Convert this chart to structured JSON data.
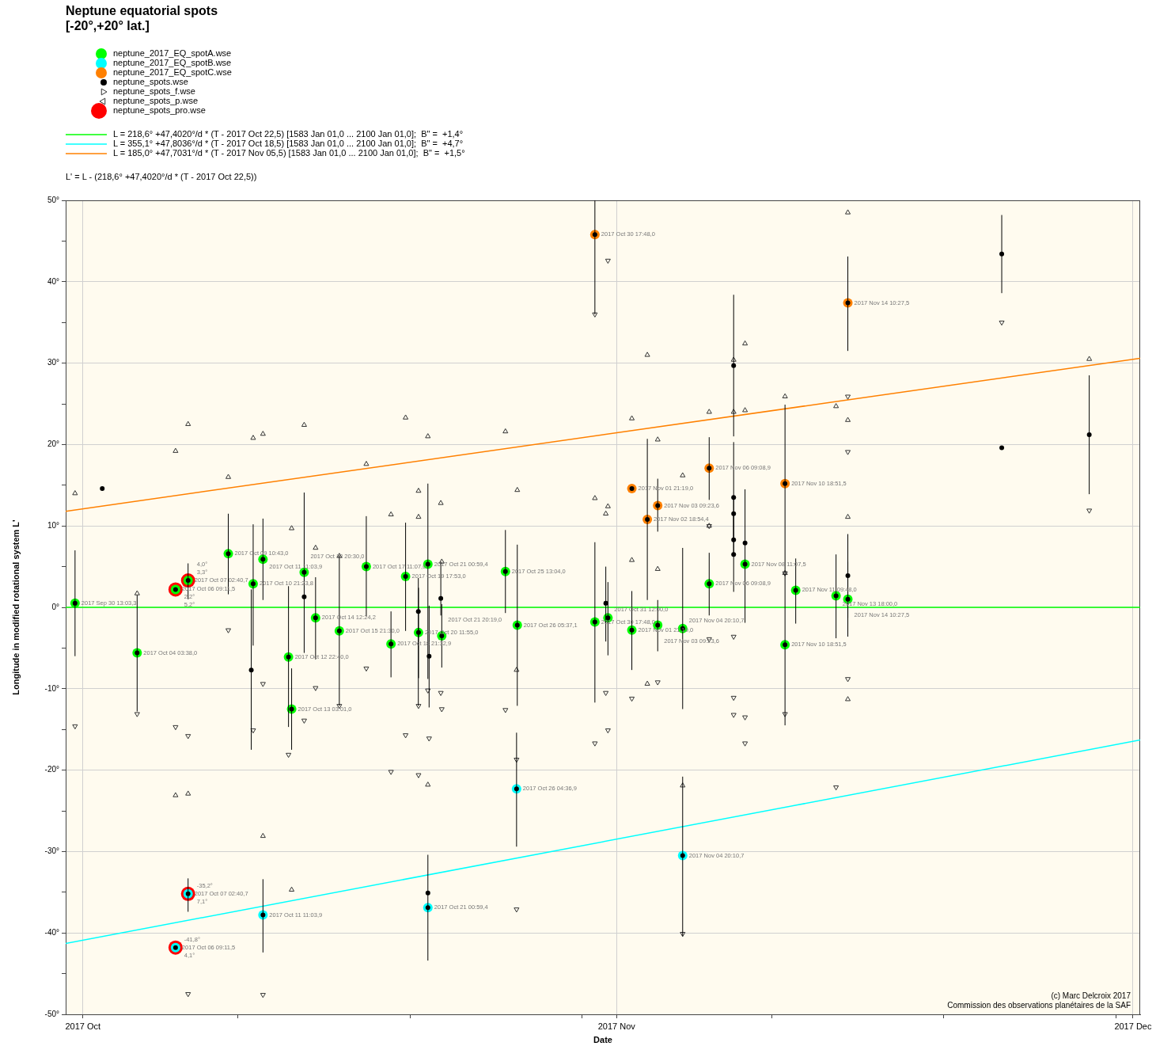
{
  "chart_data": {
    "type": "scatter",
    "title": "Neptune equatorial spots",
    "subtitle": "[-20°,+20° lat.]",
    "xlabel": "Date",
    "ylabel": "Longitude in modified rotational system L'",
    "annotations": [
      "L' = L - (218,6° +47,4020°/d * (T - 2017 Oct 22,5))",
      "(c) Marc Delcroix 2017",
      "Commission des observations planétaires de la SAF",
      {
        "text": "5,2°",
        "x": "2017-10-06T09:11",
        "y": 2.2
      },
      {
        "text": "4,1°",
        "x": "2017-10-06T09:11",
        "y": -41.8
      },
      {
        "text": "4,0°",
        "x": "2017-10-07T02:40",
        "y": 3.3
      },
      {
        "text": "7,1°",
        "x": "2017-10-07T02:40",
        "y": -35.2
      }
    ],
    "xlim": [
      "2017-09-30",
      "2017-12-01T10:00"
    ],
    "xticks": [
      {
        "value": "2017-10-01",
        "label": "2017 Oct"
      },
      {
        "value": "2017-10-10",
        "label": null
      },
      {
        "value": "2017-10-20",
        "label": null
      },
      {
        "value": "2017-10-30",
        "label": null
      },
      {
        "value": "2017-11-01",
        "label": "2017 Nov"
      },
      {
        "value": "2017-11-10",
        "label": null
      },
      {
        "value": "2017-11-20",
        "label": null
      },
      {
        "value": "2017-11-30",
        "label": null
      },
      {
        "value": "2017-12-01",
        "label": "2017 Dec"
      }
    ],
    "ylim": [
      -50,
      50
    ],
    "yticks": [
      {
        "value": -50,
        "label": "-50°"
      },
      {
        "value": -45,
        "label": null
      },
      {
        "value": -40,
        "label": "-40°"
      },
      {
        "value": -35,
        "label": null
      },
      {
        "value": -30,
        "label": "-30°"
      },
      {
        "value": -25,
        "label": null
      },
      {
        "value": -20,
        "label": "-20°"
      },
      {
        "value": -15,
        "label": null
      },
      {
        "value": -10,
        "label": "-10°"
      },
      {
        "value": -5,
        "label": null
      },
      {
        "value": 0,
        "label": "0°"
      },
      {
        "value": 5,
        "label": null
      },
      {
        "value": 10,
        "label": "10°"
      },
      {
        "value": 15,
        "label": null
      },
      {
        "value": 20,
        "label": "20°"
      },
      {
        "value": 25,
        "label": null
      },
      {
        "value": 30,
        "label": "30°"
      },
      {
        "value": 35,
        "label": null
      },
      {
        "value": 40,
        "label": "40°"
      },
      {
        "value": 45,
        "label": null
      },
      {
        "value": 50,
        "label": "50°"
      }
    ],
    "grid": true,
    "legend": "top left",
    "series": [
      {
        "name": "neptune_2017_EQ_spotA.wse",
        "color": "#00ff00",
        "marker": "circle",
        "x": [
          "2017-09-30T13:03",
          "2017-10-04T03:38",
          "2017-10-06T09:11",
          "2017-10-07T02:40",
          "2017-10-09T10:43",
          "2017-10-10T21:23",
          "2017-10-11T11:03",
          "2017-10-12T22:40",
          "2017-10-13T03:01",
          "2017-10-13T20:30",
          "2017-10-14T12:24",
          "2017-10-15T21:30",
          "2017-10-17T11:07",
          "2017-10-18T21:32",
          "2017-10-19T17:53",
          "2017-10-20T11:55",
          "2017-10-21T00:59",
          "2017-10-21T20:19",
          "2017-10-25T13:04",
          "2017-10-26T05:37",
          "2017-10-30T17:48",
          "2017-10-31T12:00",
          "2017-11-01T21:19",
          "2017-11-03T09:23",
          "2017-11-04T20:10",
          "2017-11-06T09:08",
          "2017-11-08T11:07",
          "2017-11-10T18:51",
          "2017-11-11T09:48",
          "2017-11-13T18:00",
          "2017-11-14T10:27"
        ],
        "values": [
          0.5,
          -5.6,
          2.2,
          3.3,
          6.6,
          2.9,
          5.9,
          -6.1,
          -12.5,
          4.3,
          -1.3,
          -2.9,
          5.0,
          -4.5,
          3.8,
          -3.1,
          5.3,
          -3.5,
          4.4,
          -2.2,
          -1.8,
          -1.3,
          -2.8,
          -2.2,
          -2.6,
          2.9,
          5.3,
          -4.6,
          2.1,
          1.4,
          1.0
        ],
        "value_labels": [
          "2017 Sep 30 13:03,3",
          "2017 Oct 04 03:38,0",
          "2017 Oct 06 09:11,5",
          "2017 Oct 07 02:40,7",
          "2017 Oct 09 10:43,0",
          "2017 Oct 10 21:23,8",
          "2017 Oct 11 11:03,9",
          "2017 Oct 12 22:40,0",
          "2017 Oct 13 03:01,0",
          "2017 Oct 13 20:30,0",
          "2017 Oct 14 12:24,2",
          "2017 Oct 15 21:30,0",
          "2017 Oct 17 11:07,0",
          "2017 Oct 18 21:32,9",
          "2017 Oct 19 17:53,0",
          "2017 Oct 20 11:55,0",
          "2017 Oct 21 00:59,4",
          "2017 Oct 21 20:19,0",
          "2017 Oct 25 13:04,0",
          "2017 Oct 26 05:37,1",
          "2017 Oct 30 17:48,0",
          "2017 Oct 31 12:00,0",
          "2017 Nov 01 21:19,0",
          "2017 Nov 03 09:23,6",
          "2017 Nov 04 20:10,7",
          "2017 Nov 06 09:08,9",
          "2017 Nov 08 11:07,5",
          "2017 Nov 10 18:51,5",
          "2017 Nov 11 09:48,0",
          "2017 Nov 13 18:00,0",
          "2017 Nov 14 10:27,5"
        ]
      },
      {
        "name": "neptune_2017_EQ_spotB.wse",
        "color": "#00ffff",
        "marker": "circle",
        "x": [
          "2017-10-06T09:11",
          "2017-10-07T02:40",
          "2017-10-11T11:03",
          "2017-10-21T00:59",
          "2017-10-26T04:36",
          "2017-11-04T20:10"
        ],
        "values": [
          -41.8,
          -35.2,
          -37.8,
          -36.9,
          -22.3,
          -30.5
        ],
        "value_labels": [
          "2017 Oct 06 09:11,5",
          "2017 Oct 07 02:40,7",
          "2017 Oct 11 11:03,9",
          "2017 Oct 21 00:59,4",
          "2017 Oct 26 04:36,9",
          "2017 Nov 04 20:10,7"
        ]
      },
      {
        "name": "neptune_2017_EQ_spotC.wse",
        "color": "#ff8000",
        "marker": "circle",
        "x": [
          "2017-10-30T17:48",
          "2017-11-01T21:19",
          "2017-11-02T18:54",
          "2017-11-03T09:23",
          "2017-11-06T09:08",
          "2017-11-10T18:51",
          "2017-11-14T10:27"
        ],
        "values": [
          45.8,
          14.6,
          10.8,
          12.5,
          17.1,
          15.2,
          37.4
        ],
        "value_labels": [
          "2017 Oct 30 17:48,0",
          "2017 Nov 01 21:19,0",
          "2017 Nov 02 18:54,4",
          "2017 Nov 03 09:23,6",
          "2017 Nov 06 09:08,9",
          "2017 Nov 10 18:51,5",
          "2017 Nov 14 10:27,5"
        ]
      },
      {
        "name": "neptune_spots.wse",
        "color": "#000000",
        "marker": "circle",
        "x": [
          "2017-09-30T13:03",
          "2017-10-02T03:00",
          "2017-10-04T03:38",
          "2017-10-06T09:11",
          "2017-10-06T09:11",
          "2017-10-07T02:40",
          "2017-10-07T02:40",
          "2017-10-09T10:43",
          "2017-10-10T18:45",
          "2017-10-10T21:23",
          "2017-10-11T11:03",
          "2017-10-11T11:03",
          "2017-10-12T22:40",
          "2017-10-13T03:01",
          "2017-10-13T20:30",
          "2017-10-13T20:30",
          "2017-10-14T12:24",
          "2017-10-15T21:30",
          "2017-10-17T11:07",
          "2017-10-18T21:32",
          "2017-10-19T17:53",
          "2017-10-20T11:40",
          "2017-10-20T11:55",
          "2017-10-21T00:59",
          "2017-10-21T00:59",
          "2017-10-21T00:59",
          "2017-10-21T02:40",
          "2017-10-21T19:00",
          "2017-10-21T20:19",
          "2017-10-25T13:04",
          "2017-10-26T04:36",
          "2017-10-26T05:37",
          "2017-10-30T17:48",
          "2017-10-30T17:48",
          "2017-10-31T09:00",
          "2017-10-31T12:00",
          "2017-11-01T21:19",
          "2017-11-01T21:19",
          "2017-11-02T18:54",
          "2017-11-03T09:23",
          "2017-11-03T09:23",
          "2017-11-04T20:10",
          "2017-11-04T20:10",
          "2017-11-06T09:08",
          "2017-11-06T09:08",
          "2017-11-07T19:15",
          "2017-11-07T19:15",
          "2017-11-07T19:15",
          "2017-11-07T19:15",
          "2017-11-07T19:15",
          "2017-11-08T11:07",
          "2017-11-08T11:07",
          "2017-11-10T18:51",
          "2017-11-10T18:51",
          "2017-11-11T09:48",
          "2017-11-13T18:00",
          "2017-11-14T10:27",
          "2017-11-14T10:27",
          "2017-11-14T10:27",
          "2017-11-23T09:00",
          "2017-11-23T09:00",
          "2017-11-28T11:00"
        ],
        "values": [
          0.5,
          14.6,
          -5.6,
          2.2,
          -41.8,
          3.3,
          -35.2,
          6.6,
          -7.7,
          2.9,
          5.9,
          -37.8,
          -6.1,
          -12.5,
          4.3,
          1.3,
          -1.3,
          -2.9,
          5.0,
          -4.5,
          3.8,
          -0.5,
          -3.1,
          5.3,
          -36.9,
          -35.1,
          -6.0,
          1.1,
          -3.5,
          4.4,
          -22.3,
          -2.2,
          45.8,
          -1.8,
          0.5,
          -1.3,
          14.6,
          -2.8,
          10.8,
          12.5,
          -2.2,
          -2.6,
          -30.5,
          17.1,
          2.9,
          29.7,
          13.5,
          11.5,
          8.3,
          6.5,
          7.9,
          5.3,
          15.2,
          -4.6,
          2.1,
          1.4,
          37.4,
          3.9,
          1.0,
          43.4,
          19.6,
          21.2
        ],
        "errors": [
          [
            -6.0,
            7.0
          ],
          null,
          [
            -12.8,
            1.5
          ],
          null,
          null,
          [
            1.0,
            5.4
          ],
          [
            -37.4,
            -33.3
          ],
          [
            1.6,
            11.5
          ],
          [
            -17.5,
            2.2
          ],
          [
            -4.7,
            10.2
          ],
          [
            0.9,
            10.9
          ],
          [
            -42.4,
            -33.4
          ],
          [
            -14.7,
            2.6
          ],
          [
            -17.5,
            -7.5
          ],
          [
            -5.6,
            14.1
          ],
          null,
          [
            -6.4,
            3.7
          ],
          [
            -12.1,
            6.4
          ],
          [
            -1.1,
            11.2
          ],
          [
            -8.6,
            -0.5
          ],
          [
            -2.9,
            10.4
          ],
          [
            -12.1,
            3.6
          ],
          [
            -8.7,
            2.4
          ],
          [
            -8.8,
            15.2
          ],
          [
            -43.4,
            -30.4
          ],
          null,
          [
            -12.3,
            0.2
          ],
          [
            -1.0,
            5.6
          ],
          [
            -7.4,
            0.4
          ],
          [
            -0.7,
            9.5
          ],
          [
            -29.4,
            -15.4
          ],
          [
            -12.1,
            7.7
          ],
          [
            36.0,
            50
          ],
          [
            -11.7,
            8.0
          ],
          [
            -4.2,
            5.0
          ],
          [
            -5.9,
            3.1
          ],
          null,
          [
            -7.7,
            2.0
          ],
          [
            0.9,
            20.7
          ],
          [
            9.3,
            15.8
          ],
          [
            -5.4,
            0.9
          ],
          [
            -12.5,
            7.3
          ],
          [
            -40.4,
            -20.8
          ],
          [
            13.2,
            20.9
          ],
          [
            -1.0,
            6.7
          ],
          [
            21.0,
            38.4
          ],
          [
            1.9,
            20.3
          ],
          [
            8.3,
            13.5
          ],
          [
            6.5,
            11.5
          ],
          null,
          null,
          [
            -1.9,
            14.5
          ],
          [
            -14.5,
            24.9
          ],
          null,
          [
            -2.0,
            6.0
          ],
          [
            -3.8,
            6.5
          ],
          [
            31.5,
            43.1
          ],
          [
            -1.3,
            5.6
          ],
          [
            -3.6,
            9.0
          ],
          [
            38.6,
            48.2
          ],
          null,
          [
            13.9,
            28.5
          ]
        ]
      },
      {
        "name": "neptune_spots_f.wse",
        "color": "#333333",
        "marker": "triangle",
        "x": [
          "2017-09-30T13:03",
          "2017-10-04T03:38",
          "2017-10-06T09:11",
          "2017-10-06T09:11",
          "2017-10-07T02:40",
          "2017-10-07T02:40",
          "2017-10-09T10:43",
          "2017-10-10T21:23",
          "2017-10-11T11:03",
          "2017-10-11T11:03",
          "2017-10-13T03:01",
          "2017-10-13T03:01",
          "2017-10-13T20:30",
          "2017-10-14T12:24",
          "2017-10-15T21:30",
          "2017-10-17T11:07",
          "2017-10-18T21:32",
          "2017-10-19T17:53",
          "2017-10-20T11:55",
          "2017-10-20T11:55",
          "2017-10-21T00:59",
          "2017-10-21T00:59",
          "2017-10-21T19:00",
          "2017-10-21T20:19",
          "2017-10-25T13:04",
          "2017-10-26T04:36",
          "2017-10-26T05:37",
          "2017-10-30T17:48",
          "2017-10-31T09:00",
          "2017-10-31T12:00",
          "2017-11-01T21:19",
          "2017-11-01T21:19",
          "2017-11-02T18:54",
          "2017-11-02T18:54",
          "2017-11-03T09:23",
          "2017-11-03T09:23",
          "2017-11-04T20:10",
          "2017-11-04T20:10",
          "2017-11-06T09:08",
          "2017-11-06T09:08",
          "2017-11-07T19:15",
          "2017-11-07T19:15",
          "2017-11-08T11:07",
          "2017-11-08T11:07",
          "2017-11-10T18:51",
          "2017-11-10T18:51",
          "2017-11-13T18:00",
          "2017-11-14T10:27",
          "2017-11-14T10:27",
          "2017-11-14T10:27",
          "2017-11-14T10:27",
          "2017-11-28T11:00"
        ],
        "values": [
          14.0,
          1.7,
          19.2,
          -23.1,
          22.5,
          -22.9,
          16.0,
          20.8,
          21.3,
          -28.1,
          9.7,
          -34.7,
          22.4,
          7.3,
          6.3,
          17.6,
          11.4,
          23.3,
          14.3,
          11.1,
          21.0,
          -21.8,
          12.8,
          5.6,
          21.6,
          -7.7,
          14.4,
          13.4,
          11.5,
          12.4,
          23.2,
          5.8,
          31.0,
          -9.4,
          20.6,
          4.7,
          16.2,
          -21.9,
          24.0,
          10.0,
          30.4,
          24.0,
          32.4,
          24.2,
          25.9,
          4.2,
          24.7,
          48.5,
          23.0,
          11.1,
          -11.3,
          30.5
        ]
      },
      {
        "name": "neptune_spots_p.wse",
        "color": "#333333",
        "marker": "triangle",
        "x": [
          "2017-09-30T13:03",
          "2017-10-04T03:38",
          "2017-10-06T09:11",
          "2017-10-07T02:40",
          "2017-10-07T02:40",
          "2017-10-09T10:43",
          "2017-10-10T21:23",
          "2017-10-11T11:03",
          "2017-10-11T11:03",
          "2017-10-12T22:40",
          "2017-10-13T20:30",
          "2017-10-14T12:24",
          "2017-10-15T21:30",
          "2017-10-17T11:07",
          "2017-10-18T21:32",
          "2017-10-19T17:53",
          "2017-10-20T11:55",
          "2017-10-20T11:55",
          "2017-10-21T00:59",
          "2017-10-21T02:40",
          "2017-10-21T19:00",
          "2017-10-21T20:19",
          "2017-10-25T13:04",
          "2017-10-26T04:36",
          "2017-10-26T04:36",
          "2017-10-30T17:48",
          "2017-10-30T17:48",
          "2017-10-31T09:00",
          "2017-10-31T12:00",
          "2017-10-31T12:00",
          "2017-11-01T21:19",
          "2017-11-03T09:23",
          "2017-11-04T20:10",
          "2017-11-06T09:08",
          "2017-11-06T09:08",
          "2017-11-07T19:15",
          "2017-11-07T19:15",
          "2017-11-07T19:15",
          "2017-11-08T11:07",
          "2017-11-08T11:07",
          "2017-11-10T18:51",
          "2017-11-10T18:51",
          "2017-11-13T18:00",
          "2017-11-14T10:27",
          "2017-11-14T10:27",
          "2017-11-14T10:27",
          "2017-11-23T09:00",
          "2017-11-28T11:00"
        ],
        "values": [
          -14.6,
          -13.1,
          -14.7,
          -15.8,
          -47.5,
          -2.8,
          -15.1,
          -9.4,
          -47.6,
          -18.1,
          -13.9,
          -9.9,
          -12.1,
          -7.5,
          -20.2,
          -15.7,
          -12.1,
          -20.6,
          -10.2,
          -16.1,
          -10.5,
          -12.5,
          -12.6,
          -18.7,
          -37.1,
          36.0,
          -16.7,
          -10.5,
          42.6,
          -15.1,
          -11.2,
          -9.2,
          -40.1,
          10.0,
          -3.9,
          -3.6,
          -11.1,
          -13.2,
          -13.5,
          -16.7,
          4.2,
          -13.1,
          -22.1,
          25.9,
          19.1,
          -8.8,
          35.0,
          11.9
        ]
      },
      {
        "name": "neptune_spots_pro.wse",
        "color": "#ff0000",
        "marker": "circle",
        "x": [
          "2017-10-06T09:11",
          "2017-10-06T09:11",
          "2017-10-07T02:40",
          "2017-10-07T02:40"
        ],
        "values": [
          2.2,
          -41.8,
          3.3,
          -35.2
        ],
        "value_labels": [
          "2,2°",
          "-41,8°",
          "3,3°",
          "-35,2°"
        ]
      },
      {
        "type": "line",
        "name": "L = 218,6° +47,4020°/d * (T - 2017 Oct 22,5) [1583 Jan 01,0 ... 2100 Jan 01,0];  B\" =  +1,4°",
        "color": "#00ff00",
        "x": [
          "2017-09-30",
          "2017-12-01T10:00"
        ],
        "values": [
          0,
          0
        ]
      },
      {
        "type": "line",
        "name": "L = 355,1° +47,8036°/d * (T - 2017 Oct 18,5) [1583 Jan 01,0 ... 2100 Jan 01,0];  B\" =  +4,7°",
        "color": "#00ffff",
        "x": [
          "2017-09-30",
          "2017-12-01T10:00"
        ],
        "values": [
          -41.3,
          -16.3
        ]
      },
      {
        "type": "line",
        "name": "L = 185,0° +47,7031°/d * (T - 2017 Nov 05,5) [1583 Jan 01,0 ... 2100 Jan 01,0];  B\" =  +1,5°",
        "color": "#ff8000",
        "x": [
          "2017-09-30",
          "2017-12-01T10:00"
        ],
        "values": [
          11.8,
          30.6
        ]
      }
    ]
  }
}
